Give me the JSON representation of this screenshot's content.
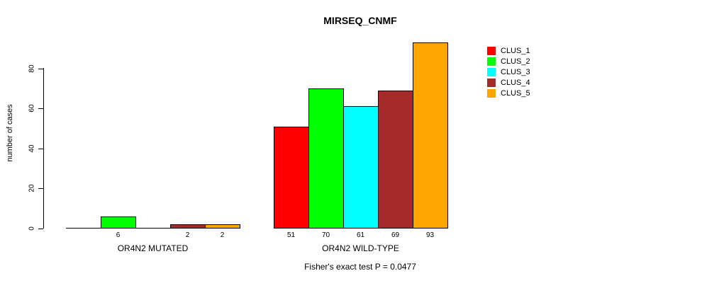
{
  "figure": {
    "background": "#ffffff",
    "axis_color": "#000000",
    "text_color": "#000000"
  },
  "chart_data": {
    "type": "bar",
    "title": "MIRSEQ_CNMF",
    "ylabel": "number of cases",
    "xlabel": "",
    "annotation": "Fisher's exact test P = 0.0477",
    "categories": [
      "OR4N2 MUTATED",
      "OR4N2 WILD-TYPE"
    ],
    "series": [
      {
        "name": "CLUS_1",
        "color": "#ff0000",
        "values": [
          0,
          51
        ]
      },
      {
        "name": "CLUS_2",
        "color": "#00ff00",
        "values": [
          6,
          70
        ]
      },
      {
        "name": "CLUS_3",
        "color": "#00ffff",
        "values": [
          0,
          61
        ]
      },
      {
        "name": "CLUS_4",
        "color": "#a52a2a",
        "values": [
          2,
          69
        ]
      },
      {
        "name": "CLUS_5",
        "color": "#ffa500",
        "values": [
          2,
          93
        ]
      }
    ],
    "bar_value_labels": [
      [
        "",
        "6",
        "",
        "2",
        "2"
      ],
      [
        "51",
        "70",
        "61",
        "69",
        "93"
      ]
    ],
    "yticks": [
      0,
      20,
      40,
      60,
      80
    ],
    "ylim": [
      0,
      95
    ],
    "grid": false,
    "legend_position": "top-right",
    "legend": [
      "CLUS_1",
      "CLUS_2",
      "CLUS_3",
      "CLUS_4",
      "CLUS_5"
    ]
  }
}
